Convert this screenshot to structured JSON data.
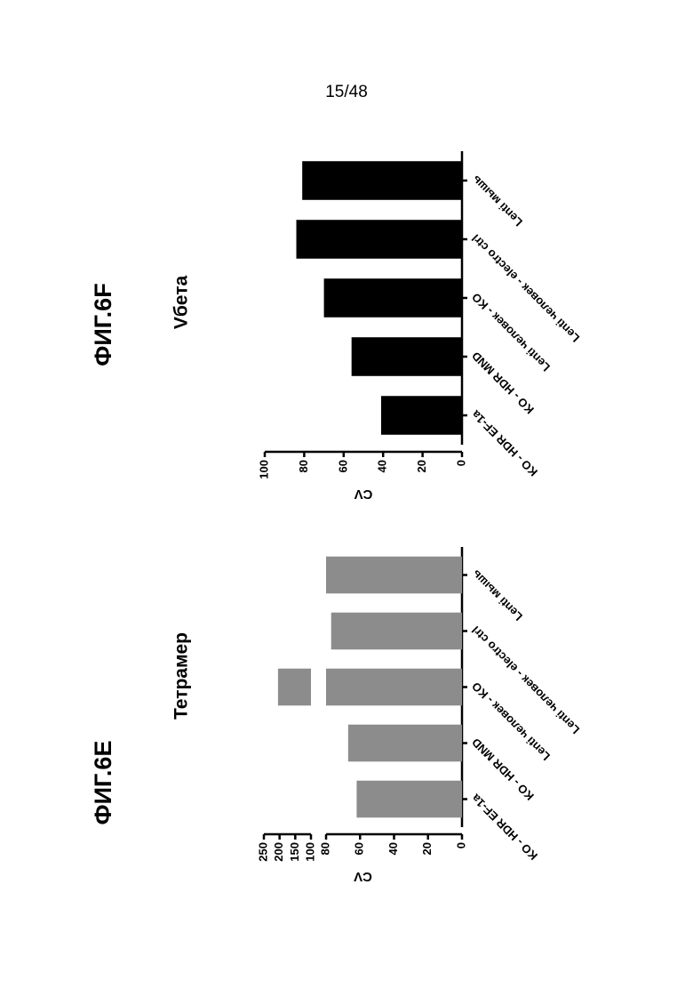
{
  "page_number": "15/48",
  "chart_data": [
    {
      "type": "bar",
      "figure_label": "ФИГ.6E",
      "title": "Тетрамер",
      "ylabel": "CV",
      "categories": [
        "KO - HDR EF-1a",
        "KO - HDR MND",
        "Lenti человек - KO",
        "Lenti человек - electro ctrl",
        "Lenti мышь"
      ],
      "values": [
        62,
        67,
        205,
        77,
        80
      ],
      "color": "#8c8c8c",
      "ylim": [
        0,
        250
      ],
      "yticks": [
        0,
        20,
        40,
        60,
        80,
        100,
        150,
        200,
        250
      ],
      "axis_break": [
        80,
        100
      ]
    },
    {
      "type": "bar",
      "figure_label": "ФИГ.6F",
      "title": "Vбета",
      "ylabel": "CV",
      "categories": [
        "KO - HDR EF-1a",
        "KO - HDR MND",
        "Lenti человек - KO",
        "Lenti человек - electro ctrl",
        "Lenti мышь"
      ],
      "values": [
        41,
        56,
        70,
        84,
        81
      ],
      "color": "#000000",
      "ylim": [
        0,
        100
      ],
      "yticks": [
        0,
        20,
        40,
        60,
        80,
        100
      ]
    }
  ]
}
